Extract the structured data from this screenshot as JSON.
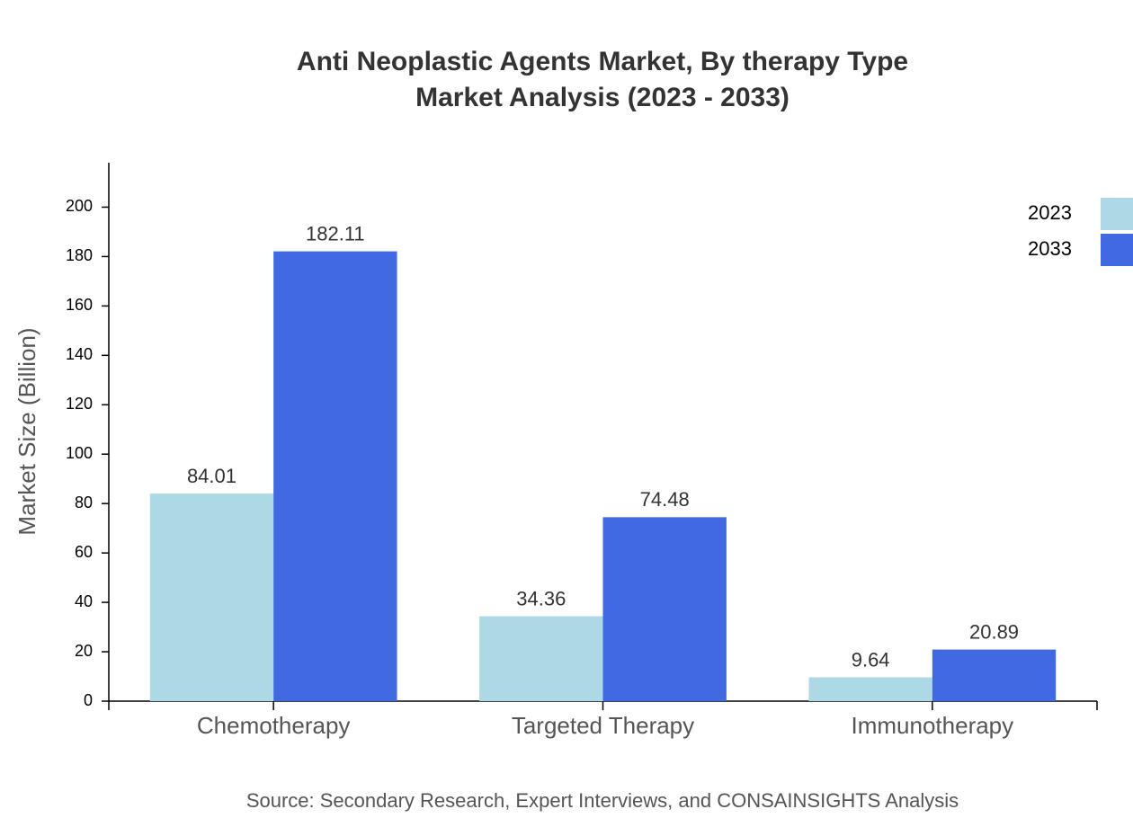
{
  "chart_data": {
    "type": "bar",
    "title": "Anti Neoplastic Agents Market, By therapy Type",
    "subtitle": "Market Analysis (2023 - 2033)",
    "y_label": "Market Size (Billion)",
    "source": "Source: Secondary Research, Expert Interviews, and CONSAINSIGHTS Analysis",
    "categories": [
      "Chemotherapy",
      "Targeted Therapy",
      "Immunotherapy"
    ],
    "series": [
      {
        "name": "2023",
        "color": "#add8e6",
        "values": [
          84.01,
          34.36,
          9.64
        ]
      },
      {
        "name": "2033",
        "color": "#4169e1",
        "values": [
          182.11,
          74.48,
          20.89
        ]
      }
    ],
    "ylim": [
      0,
      218
    ],
    "yticks": [
      0,
      20,
      40,
      60,
      80,
      100,
      120,
      140,
      160,
      180,
      200
    ],
    "grid": false,
    "legend": "top-right"
  }
}
